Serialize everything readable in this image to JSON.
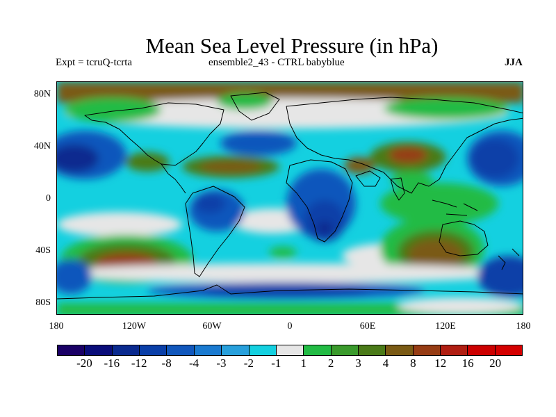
{
  "title": "Mean Sea Level Pressure (in hPa)",
  "subtitle_left": "Expt = tcruQ-tcrta",
  "subtitle_center": "ensemble2_43 - CTRL babyblue",
  "subtitle_right": "JJA",
  "lat_labels": [
    "80N",
    "40N",
    "0",
    "40S",
    "80S"
  ],
  "lon_labels": [
    "180",
    "120W",
    "60W",
    "0",
    "60E",
    "120E",
    "180"
  ],
  "colorbar": {
    "labels": [
      "-20",
      "-16",
      "-12",
      "-8",
      "-4",
      "-3",
      "-2",
      "-1",
      "1",
      "2",
      "3",
      "4",
      "8",
      "12",
      "16",
      "20"
    ],
    "colors": [
      "#1a0066",
      "#0a0d7a",
      "#0a2a8f",
      "#0a3fa8",
      "#1157bc",
      "#1a7ad0",
      "#28a0dc",
      "#14d0e0",
      "#e6e6e6",
      "#22bb44",
      "#3a9a2c",
      "#4a7a18",
      "#7a5a14",
      "#963c14",
      "#b01e12",
      "#cc0000",
      "#d40000"
    ]
  }
}
